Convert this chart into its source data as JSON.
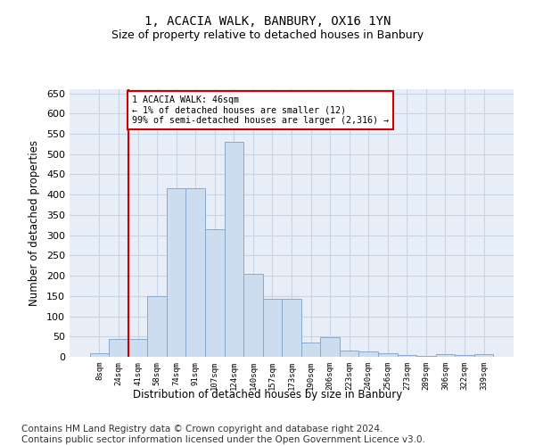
{
  "title": "1, ACACIA WALK, BANBURY, OX16 1YN",
  "subtitle": "Size of property relative to detached houses in Banbury",
  "xlabel": "Distribution of detached houses by size in Banbury",
  "ylabel": "Number of detached properties",
  "bar_color": "#ccddf0",
  "bar_edge_color": "#88aacc",
  "grid_color": "#c8d4e4",
  "background_color": "#e8eef8",
  "vline_x_idx": 2,
  "vline_color": "#cc0000",
  "annotation_text": "1 ACACIA WALK: 46sqm\n← 1% of detached houses are smaller (12)\n99% of semi-detached houses are larger (2,316) →",
  "annotation_box_color": "#ffffff",
  "annotation_box_edge_color": "#cc0000",
  "categories": [
    "8sqm",
    "24sqm",
    "41sqm",
    "58sqm",
    "74sqm",
    "91sqm",
    "107sqm",
    "124sqm",
    "140sqm",
    "157sqm",
    "173sqm",
    "190sqm",
    "206sqm",
    "223sqm",
    "240sqm",
    "256sqm",
    "273sqm",
    "289sqm",
    "306sqm",
    "322sqm",
    "339sqm"
  ],
  "values": [
    8,
    45,
    45,
    150,
    415,
    415,
    315,
    530,
    205,
    143,
    143,
    35,
    48,
    15,
    13,
    8,
    5,
    3,
    7,
    5,
    7
  ],
  "ylim": [
    0,
    660
  ],
  "yticks": [
    0,
    50,
    100,
    150,
    200,
    250,
    300,
    350,
    400,
    450,
    500,
    550,
    600,
    650
  ],
  "footer_text": "Contains HM Land Registry data © Crown copyright and database right 2024.\nContains public sector information licensed under the Open Government Licence v3.0.",
  "footer_fontsize": 7.5,
  "title_fontsize": 10,
  "subtitle_fontsize": 9
}
